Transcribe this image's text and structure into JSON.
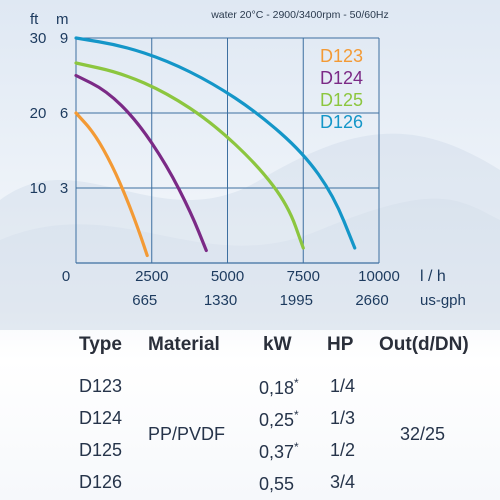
{
  "chart_data": {
    "type": "line",
    "title": "water 20°C - 2900/3400rpm - 50/60Hz",
    "y_units": [
      "ft",
      "m"
    ],
    "x_units": [
      "l / h",
      "us-gph"
    ],
    "x_ticks_lh": [
      "0",
      "2500",
      "5000",
      "7500",
      "10000"
    ],
    "x_ticks_usgph": [
      "665",
      "1330",
      "1995",
      "2660"
    ],
    "y_ticks_ft": [
      "30",
      "20",
      "10"
    ],
    "y_ticks_m": [
      "9",
      "6",
      "3"
    ],
    "xlim": [
      0,
      10000
    ],
    "ylim_m": [
      0,
      9
    ],
    "grid": true,
    "legend_position": "top-right",
    "series": [
      {
        "name": "D123",
        "color": "#f39a35",
        "x": [
          0,
          600,
          1200,
          1700,
          2100,
          2350
        ],
        "y": [
          6.0,
          5.2,
          3.9,
          2.5,
          1.2,
          0.3
        ]
      },
      {
        "name": "D124",
        "color": "#7b2a86",
        "x": [
          0,
          1000,
          2000,
          3000,
          3800,
          4300
        ],
        "y": [
          7.5,
          6.9,
          5.7,
          3.9,
          2.0,
          0.5
        ]
      },
      {
        "name": "D125",
        "color": "#8cc63f",
        "x": [
          0,
          1500,
          3000,
          4500,
          6000,
          7000,
          7500
        ],
        "y": [
          8.0,
          7.6,
          6.8,
          5.6,
          3.9,
          2.3,
          0.6
        ]
      },
      {
        "name": "D126",
        "color": "#1496c8",
        "x": [
          0,
          1500,
          3000,
          4500,
          6000,
          7500,
          8500,
          9200
        ],
        "y": [
          9.0,
          8.7,
          8.1,
          7.2,
          6.0,
          4.4,
          2.7,
          0.6
        ]
      }
    ]
  },
  "table": {
    "headers": [
      "Type",
      "Material",
      "kW",
      "HP",
      "Out(d/DN)"
    ],
    "rows": [
      {
        "type": "D123",
        "kw": "0,18",
        "kw_mark": "*",
        "hp": "1/4"
      },
      {
        "type": "D124",
        "kw": "0,25",
        "kw_mark": "*",
        "hp": "1/3"
      },
      {
        "type": "D125",
        "kw": "0,37",
        "kw_mark": "*",
        "hp": "1/2"
      },
      {
        "type": "D126",
        "kw": "0,55",
        "kw_mark": "",
        "hp": "3/4"
      }
    ],
    "material": "PP/PVDF",
    "out": "32/25"
  }
}
